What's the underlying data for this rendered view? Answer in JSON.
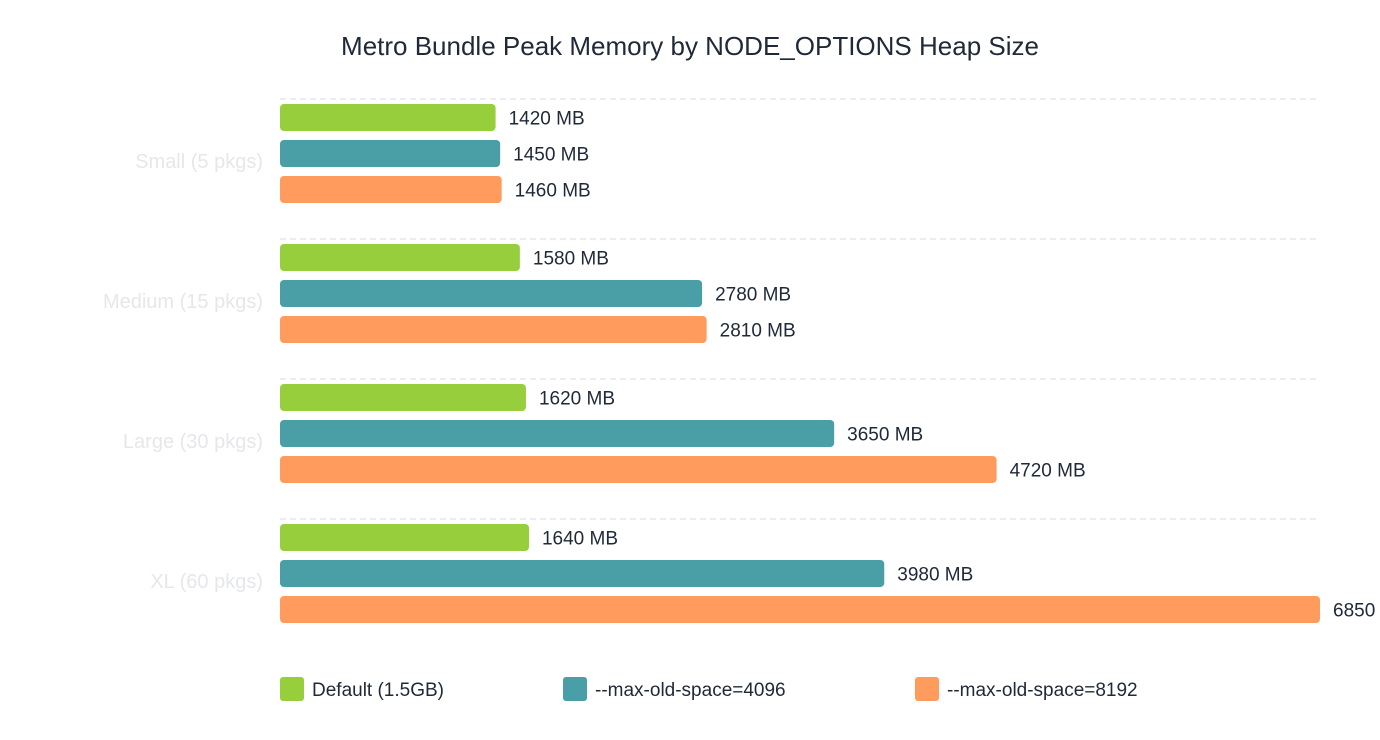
{
  "chart_data": {
    "type": "bar",
    "orientation": "horizontal",
    "title": "Metro Bundle Peak Memory by NODE_OPTIONS Heap Size",
    "xlabel": "",
    "ylabel": "",
    "xlim": [
      0,
      6850
    ],
    "unit": "MB",
    "grid": true,
    "legend_position": "bottom",
    "categories": [
      "Small (5 pkgs)",
      "Medium (15 pkgs)",
      "Large (30 pkgs)",
      "XL (60 pkgs)"
    ],
    "series": [
      {
        "name": "Default (1.5GB)",
        "color": "#97ce3c",
        "values": [
          1420,
          1580,
          1620,
          1640
        ]
      },
      {
        "name": "--max-old-space=4096",
        "color": "#4a9ea6",
        "values": [
          1450,
          2780,
          3650,
          3980
        ]
      },
      {
        "name": "--max-old-space=8192",
        "color": "#ff9b5c",
        "values": [
          1460,
          2810,
          4720,
          6850
        ]
      }
    ]
  }
}
